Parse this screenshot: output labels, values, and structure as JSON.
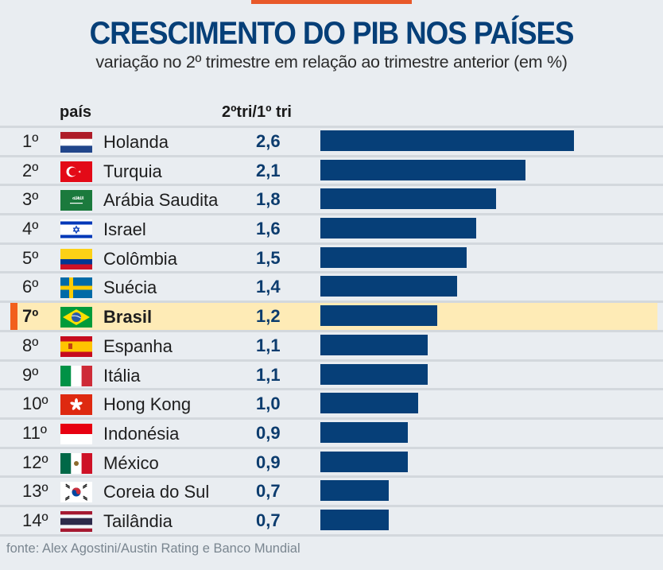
{
  "header": {
    "title": "CRESCIMENTO DO PIB NOS PAÍSES",
    "subtitle": "variação no 2º trimestre em relação ao trimestre anterior (em %)",
    "col_country": "país",
    "col_value": "2ºtri/1º tri"
  },
  "footer": {
    "source": "fonte: Alex Agostini/Austin Rating e Banco Mundial"
  },
  "colors": {
    "accent": "#e8592a",
    "bar": "#063f78",
    "highlight": "#feebb6",
    "highlight_marker": "#f2601c"
  },
  "chart_data": {
    "type": "bar",
    "orientation": "horizontal",
    "title": "CRESCIMENTO DO PIB NOS PAÍSES",
    "subtitle": "variação no 2º trimestre em relação ao trimestre anterior (em %)",
    "xlabel": "",
    "ylabel": "",
    "xlim": [
      0,
      2.6
    ],
    "grid": false,
    "legend": "none",
    "highlighted": "Brasil",
    "rows": [
      {
        "rank": "1º",
        "country": "Holanda",
        "flag": "netherlands-flag",
        "value": 2.6,
        "label": "2,6"
      },
      {
        "rank": "2º",
        "country": "Turquia",
        "flag": "turkey-flag",
        "value": 2.1,
        "label": "2,1"
      },
      {
        "rank": "3º",
        "country": "Arábia Saudita",
        "flag": "saudi-arabia-flag",
        "value": 1.8,
        "label": "1,8"
      },
      {
        "rank": "4º",
        "country": "Israel",
        "flag": "israel-flag",
        "value": 1.6,
        "label": "1,6"
      },
      {
        "rank": "5º",
        "country": "Colômbia",
        "flag": "colombia-flag",
        "value": 1.5,
        "label": "1,5"
      },
      {
        "rank": "6º",
        "country": "Suécia",
        "flag": "sweden-flag",
        "value": 1.4,
        "label": "1,4"
      },
      {
        "rank": "7º",
        "country": "Brasil",
        "flag": "brazil-flag",
        "value": 1.2,
        "label": "1,2"
      },
      {
        "rank": "8º",
        "country": "Espanha",
        "flag": "spain-flag",
        "value": 1.1,
        "label": "1,1"
      },
      {
        "rank": "9º",
        "country": "Itália",
        "flag": "italy-flag",
        "value": 1.1,
        "label": "1,1"
      },
      {
        "rank": "10º",
        "country": "Hong Kong",
        "flag": "hong-kong-flag",
        "value": 1.0,
        "label": "1,0"
      },
      {
        "rank": "11º",
        "country": "Indonésia",
        "flag": "indonesia-flag",
        "value": 0.9,
        "label": "0,9"
      },
      {
        "rank": "12º",
        "country": "México",
        "flag": "mexico-flag",
        "value": 0.9,
        "label": "0,9"
      },
      {
        "rank": "13º",
        "country": "Coreia do Sul",
        "flag": "south-korea-flag",
        "value": 0.7,
        "label": "0,7"
      },
      {
        "rank": "14º",
        "country": "Tailândia",
        "flag": "thailand-flag",
        "value": 0.7,
        "label": "0,7"
      }
    ]
  }
}
